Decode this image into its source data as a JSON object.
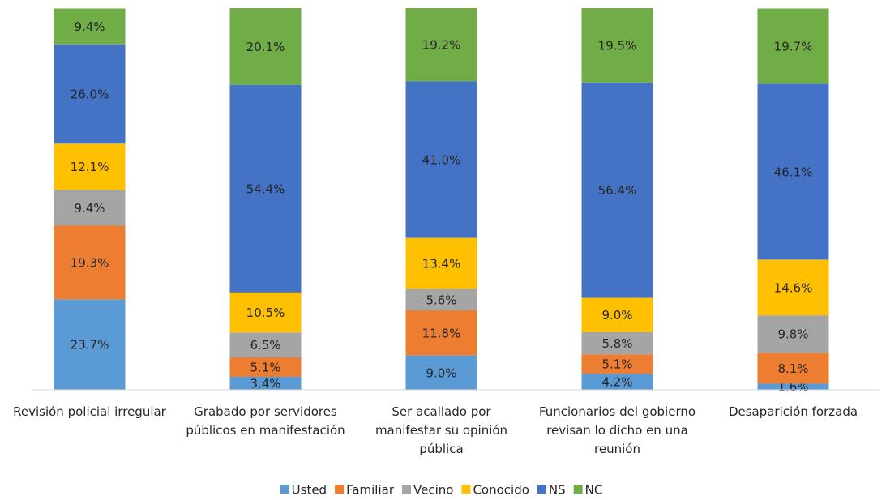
{
  "chart_data": {
    "type": "stacked_bar",
    "categories": [
      "Revisión policial irregular",
      "Grabado por servidores públicos en manifestación",
      "Ser acallado por manifestar su opinión pública",
      "Funcionarios del gobierno revisan lo dicho en una reunión",
      "Desaparición forzada"
    ],
    "series": [
      {
        "name": "Usted",
        "color": "#5b9bd5",
        "values": [
          23.7,
          3.4,
          9.0,
          4.2,
          1.6
        ],
        "value_labels": [
          "23.7%",
          "3.4%",
          "9.0%",
          "4.2%",
          "1.6%"
        ]
      },
      {
        "name": "Familiar",
        "color": "#ed7d31",
        "values": [
          19.3,
          5.1,
          11.8,
          5.1,
          8.1
        ],
        "value_labels": [
          "19.3%",
          "5.1%",
          "11.8%",
          "5.1%",
          "8.1%"
        ]
      },
      {
        "name": "Vecino",
        "color": "#a5a5a5",
        "values": [
          9.4,
          6.5,
          5.6,
          5.8,
          9.8
        ],
        "value_labels": [
          "9.4%",
          "6.5%",
          "5.6%",
          "5.8%",
          "9.8%"
        ]
      },
      {
        "name": "Conocido",
        "color": "#ffc000",
        "values": [
          12.1,
          10.5,
          13.4,
          9.0,
          14.6
        ],
        "value_labels": [
          "12.1%",
          "10.5%",
          "13.4%",
          "9.0%",
          "14.6%"
        ]
      },
      {
        "name": "NS",
        "color": "#4472c4",
        "values": [
          26.0,
          54.4,
          41.0,
          56.4,
          46.1
        ],
        "value_labels": [
          "26.0%",
          "54.4%",
          "41.0%",
          "56.4%",
          "46.1%"
        ]
      },
      {
        "name": "NC",
        "color": "#70ad47",
        "values": [
          9.4,
          20.1,
          19.2,
          19.5,
          19.7
        ],
        "value_labels": [
          "9.4%",
          "20.1%",
          "19.2%",
          "19.5%",
          "19.7%"
        ]
      }
    ],
    "ylim": [
      0,
      100
    ],
    "legend": "bottom"
  }
}
